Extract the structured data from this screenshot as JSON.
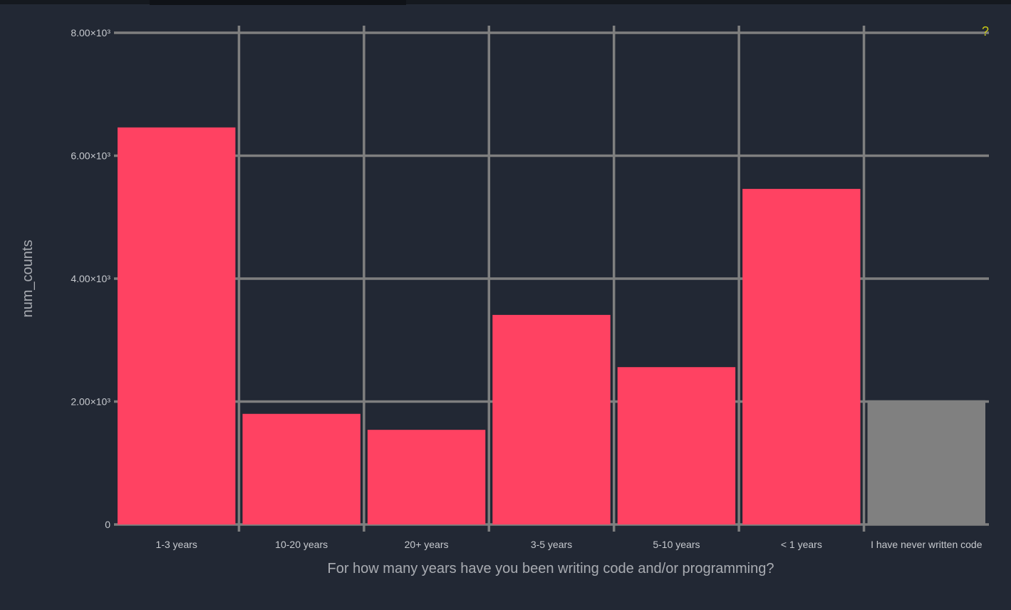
{
  "chart_data": {
    "type": "bar",
    "categories": [
      "1-3 years",
      "10-20 years",
      "20+ years",
      "3-5 years",
      "5-10 years",
      "< 1 years",
      "I have never written code"
    ],
    "values": [
      6460,
      1800,
      1540,
      3410,
      2560,
      5460,
      2020
    ],
    "bar_colors": [
      "#ff4262",
      "#ff4262",
      "#ff4262",
      "#ff4262",
      "#ff4262",
      "#ff4262",
      "#808080"
    ],
    "xlabel": "For how many years have you been writing code and/or programming?",
    "ylabel": "num_counts",
    "ylim": [
      0,
      8000
    ],
    "yticks": [
      0,
      2000,
      4000,
      6000,
      8000
    ],
    "ytick_labels": [
      "0",
      "2.00×10³",
      "4.00×10³",
      "6.00×10³",
      "8.00×10³"
    ],
    "grid": true,
    "grid_color": "#7f7f7f",
    "background": "#222834",
    "help_marker": "?"
  }
}
